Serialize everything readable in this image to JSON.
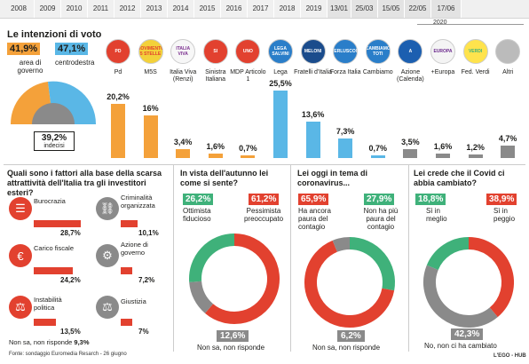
{
  "timeline": {
    "items": [
      "2008",
      "2009",
      "2010",
      "2011",
      "2012",
      "2013",
      "2014",
      "2015",
      "2016",
      "2017",
      "2018",
      "2019",
      "13/01",
      "25/03",
      "15/05",
      "22/05",
      "17/06"
    ],
    "year_label": "2020"
  },
  "voting": {
    "title": "Le intenzioni di voto",
    "area_governo_pct": "41,9%",
    "area_governo_label": "area di governo",
    "centrodestra_pct": "47,1%",
    "centrodestra_label": "centrodestra",
    "undecided_pct": "39,2%",
    "undecided_label": "indecisi",
    "colors": {
      "orange": "#f4a13a",
      "blue": "#5ab7e6",
      "gray": "#8a8a8a",
      "red": "#e2412f",
      "green": "#3fb17a"
    }
  },
  "chart_data": {
    "type": "bar",
    "categories": [
      "Pd",
      "M5S",
      "Italia Viva (Renzi)",
      "Sinistra Italiana",
      "MDP Articolo 1",
      "Lega",
      "Fratelli d'Italia",
      "Forza Italia",
      "Cambiamo",
      "Azione (Calenda)",
      "+Europa",
      "Fed. Verdi",
      "Altri"
    ],
    "values": [
      20.2,
      16,
      3.4,
      1.6,
      0.7,
      25.5,
      13.6,
      7.3,
      0.7,
      3.5,
      1.6,
      1.2,
      4.7
    ],
    "labels": [
      "20,2%",
      "16%",
      "3,4%",
      "1,6%",
      "0,7%",
      "25,5%",
      "13,6%",
      "7,3%",
      "0,7%",
      "3,5%",
      "1,6%",
      "1,2%",
      "4,7%"
    ],
    "groups": [
      "governo",
      "governo",
      "governo",
      "governo",
      "governo",
      "centrodestra",
      "centrodestra",
      "centrodestra",
      "centrodestra",
      "altri",
      "altri",
      "altri",
      "altri"
    ]
  },
  "logos": [
    "PD",
    "MOVIMENTO 5 STELLE",
    "ITALIA VIVA",
    "SI",
    "UNO",
    "LEGA SALVINI",
    "MELONI",
    "BERLUSCONI",
    "CAMBIAMO TOTI",
    "A",
    "EUROPA",
    "VERDI",
    ""
  ],
  "factors": {
    "title": "Quali sono i fattori alla base della scarsa attrattività dell'Italia tra gli investitori esteri?",
    "items": [
      {
        "label": "Burocrazia",
        "value": "28,7%",
        "num": 28.7
      },
      {
        "label": "Criminalità organizzata",
        "value": "10,1%",
        "num": 10.1
      },
      {
        "label": "Carico fiscale",
        "value": "24,2%",
        "num": 24.2
      },
      {
        "label": "Azione di governo",
        "value": "7,2%",
        "num": 7.2
      },
      {
        "label": "Instabilità politica",
        "value": "13,5%",
        "num": 13.5
      },
      {
        "label": "Giustizia",
        "value": "7%",
        "num": 7
      }
    ],
    "nonsa_label": "Non sa, non risponde",
    "nonsa_value": "9,3%",
    "footer": "Fonte: sondaggio Euromedia Resarch - 26 giugno"
  },
  "autumn": {
    "title": "In vista dell'autunno lei come si sente?",
    "a_pct": "26,2%",
    "a_label": "Ottimista fiducioso",
    "b_pct": "61,2%",
    "b_label": "Pessimista preoccupato",
    "nonsa_pct": "12,6%",
    "nonsa_label": "Non sa, non risponde",
    "values": [
      26.2,
      61.2,
      12.6
    ]
  },
  "corona": {
    "title": "Lei oggi in tema di coronavirus...",
    "a_pct": "65,9%",
    "a_label": "Ha ancora paura del contagio",
    "b_pct": "27,9%",
    "b_label": "Non ha più paura del contagio",
    "nonsa_pct": "6,2%",
    "nonsa_label": "Non sa, non risponde",
    "values": [
      65.9,
      27.9,
      6.2
    ]
  },
  "covid": {
    "title": "Lei crede che il Covid ci abbia cambiato?",
    "a_pct": "18,8%",
    "a_label": "Sì in meglio",
    "b_pct": "38,9%",
    "b_label": "Sì in peggio",
    "nonsa_pct": "42,3%",
    "nonsa_label": "No, non ci ha cambiato",
    "values": [
      18.8,
      38.9,
      42.3
    ]
  },
  "credit": "L'EGO - HUB"
}
